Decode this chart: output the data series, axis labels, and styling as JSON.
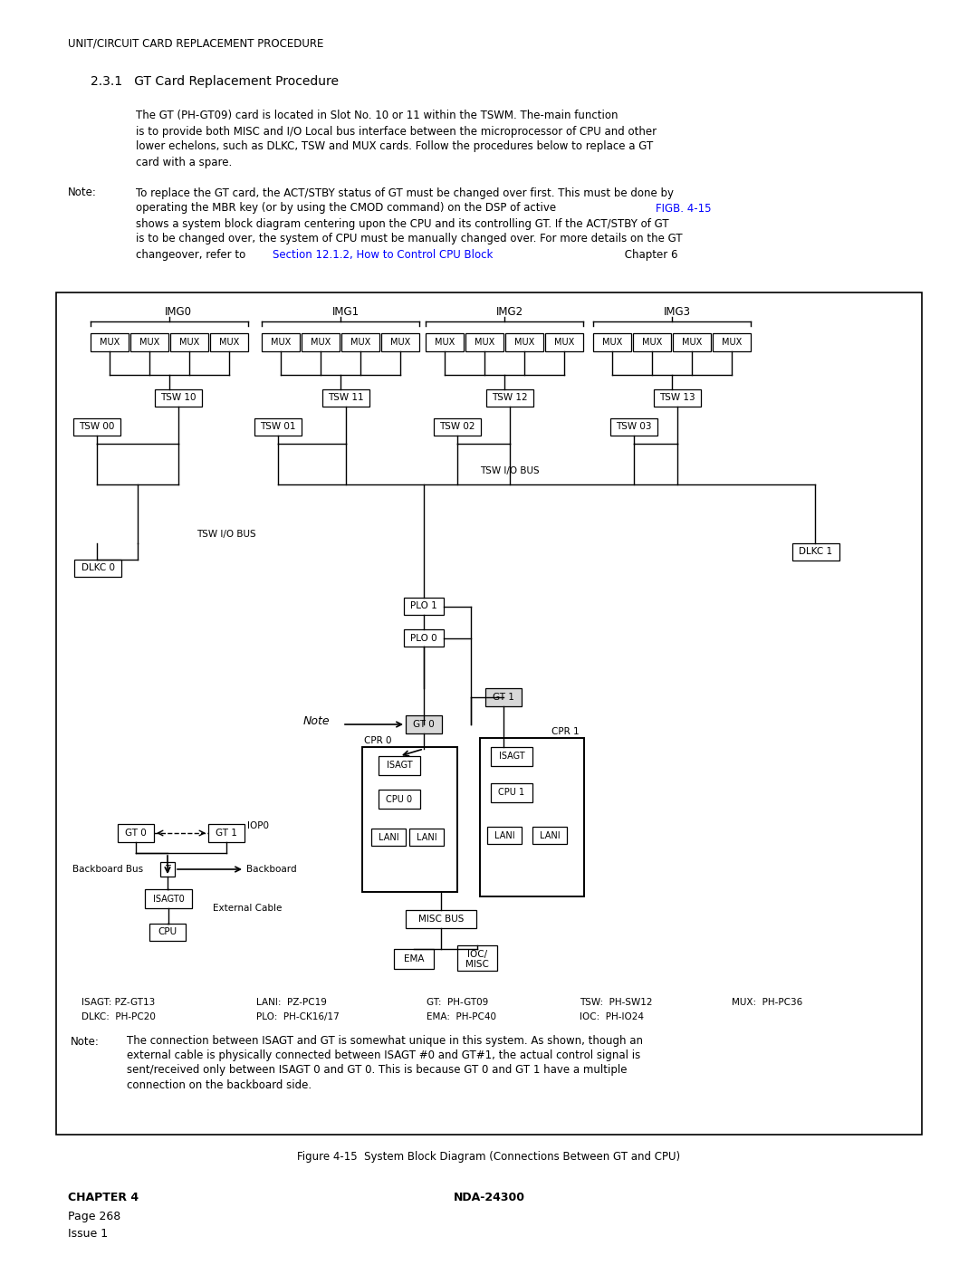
{
  "page_title": "UNIT/CIRCUIT CARD REPLACEMENT PROCEDURE",
  "section": "2.3.1   GT Card Replacement Procedure",
  "fig_caption": "Figure 4-15  System Block Diagram (Connections Between GT and CPU)",
  "footer_chapter": "CHAPTER 4",
  "footer_doc": "NDA-24300",
  "footer_page": "Page 268",
  "footer_issue": "Issue 1",
  "bg_color": "#ffffff"
}
